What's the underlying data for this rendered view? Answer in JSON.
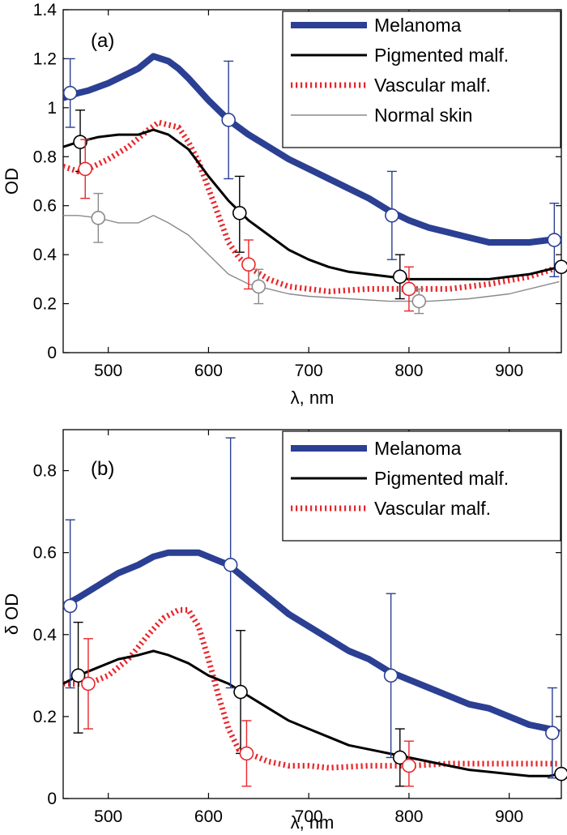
{
  "figure": {
    "panel_a_label": "(a)",
    "panel_b_label": "(b)"
  },
  "colors": {
    "melanoma": "#2b3f93",
    "pigmented": "#000000",
    "vascular": "#e8262a",
    "normal": "#8a8a8a"
  },
  "chart_data": [
    {
      "type": "line",
      "panel": "(a)",
      "xlabel": "λ, nm",
      "ylabel": "OD",
      "xlim": [
        455,
        952
      ],
      "ylim": [
        0,
        1.4
      ],
      "xticks": [
        500,
        600,
        700,
        800,
        900
      ],
      "yticks": [
        0,
        0.2,
        0.4,
        0.6,
        0.8,
        1,
        1.2,
        1.4
      ],
      "ytick_labels": [
        "0",
        "0.2",
        "0.4",
        "0.6",
        "0.8",
        "1",
        "1.2",
        "1.4"
      ],
      "grid": false,
      "legend_position": "top-right",
      "series": [
        {
          "name": "Melanoma",
          "color": "#2b3f93",
          "style": "thick",
          "x": [
            455,
            470,
            480,
            500,
            520,
            530,
            545,
            560,
            570,
            580,
            600,
            620,
            640,
            660,
            680,
            700,
            720,
            740,
            760,
            780,
            800,
            820,
            840,
            860,
            880,
            900,
            920,
            940,
            950
          ],
          "y": [
            1.04,
            1.06,
            1.07,
            1.1,
            1.14,
            1.16,
            1.21,
            1.19,
            1.16,
            1.12,
            1.03,
            0.95,
            0.89,
            0.84,
            0.79,
            0.75,
            0.71,
            0.67,
            0.63,
            0.58,
            0.54,
            0.51,
            0.49,
            0.47,
            0.45,
            0.45,
            0.45,
            0.46,
            0.46
          ],
          "markers": [
            {
              "x": 462,
              "y": 1.06,
              "lo": 0.92,
              "hi": 1.2
            },
            {
              "x": 620,
              "y": 0.95,
              "lo": 0.71,
              "hi": 1.19
            },
            {
              "x": 783,
              "y": 0.56,
              "lo": 0.38,
              "hi": 0.74
            },
            {
              "x": 945,
              "y": 0.46,
              "lo": 0.31,
              "hi": 0.61
            }
          ]
        },
        {
          "name": "Pigmented malf.",
          "color": "#000000",
          "style": "solid",
          "x": [
            455,
            470,
            490,
            510,
            530,
            545,
            560,
            580,
            600,
            620,
            640,
            660,
            680,
            700,
            720,
            740,
            760,
            780,
            800,
            820,
            840,
            860,
            880,
            900,
            920,
            940,
            950
          ],
          "y": [
            0.84,
            0.86,
            0.88,
            0.89,
            0.89,
            0.91,
            0.89,
            0.83,
            0.72,
            0.62,
            0.54,
            0.48,
            0.42,
            0.38,
            0.35,
            0.33,
            0.32,
            0.31,
            0.3,
            0.3,
            0.3,
            0.3,
            0.3,
            0.31,
            0.32,
            0.34,
            0.35
          ],
          "markers": [
            {
              "x": 472,
              "y": 0.86,
              "lo": 0.74,
              "hi": 0.99
            },
            {
              "x": 631,
              "y": 0.57,
              "lo": 0.41,
              "hi": 0.72
            },
            {
              "x": 791,
              "y": 0.31,
              "lo": 0.22,
              "hi": 0.4
            },
            {
              "x": 952,
              "y": 0.35,
              "lo": 0.35,
              "hi": 0.35
            }
          ]
        },
        {
          "name": "Vascular malf.",
          "color": "#e8262a",
          "style": "dotted",
          "x": [
            455,
            470,
            480,
            500,
            520,
            540,
            550,
            560,
            570,
            580,
            590,
            600,
            610,
            620,
            630,
            640,
            660,
            680,
            700,
            720,
            760,
            800,
            840,
            880,
            920,
            950
          ],
          "y": [
            0.76,
            0.74,
            0.75,
            0.79,
            0.84,
            0.91,
            0.94,
            0.93,
            0.92,
            0.86,
            0.78,
            0.67,
            0.56,
            0.45,
            0.39,
            0.35,
            0.3,
            0.27,
            0.26,
            0.25,
            0.26,
            0.26,
            0.26,
            0.28,
            0.31,
            0.35
          ],
          "markers": [
            {
              "x": 477,
              "y": 0.75,
              "lo": 0.63,
              "hi": 0.87
            },
            {
              "x": 640,
              "y": 0.36,
              "lo": 0.26,
              "hi": 0.46
            },
            {
              "x": 800,
              "y": 0.26,
              "lo": 0.17,
              "hi": 0.35
            }
          ]
        },
        {
          "name": "Normal skin",
          "color": "#8a8a8a",
          "style": "thin",
          "x": [
            455,
            470,
            490,
            510,
            530,
            545,
            560,
            580,
            600,
            620,
            640,
            660,
            680,
            700,
            740,
            780,
            820,
            860,
            900,
            930,
            950
          ],
          "y": [
            0.56,
            0.56,
            0.55,
            0.53,
            0.53,
            0.56,
            0.53,
            0.48,
            0.4,
            0.32,
            0.28,
            0.26,
            0.24,
            0.23,
            0.22,
            0.21,
            0.21,
            0.22,
            0.24,
            0.27,
            0.29
          ],
          "markers": [
            {
              "x": 490,
              "y": 0.55,
              "lo": 0.45,
              "hi": 0.65
            },
            {
              "x": 650,
              "y": 0.27,
              "lo": 0.2,
              "hi": 0.34
            },
            {
              "x": 810,
              "y": 0.21,
              "lo": 0.16,
              "hi": 0.26
            }
          ]
        }
      ]
    },
    {
      "type": "line",
      "panel": "(b)",
      "xlabel": "λ, nm",
      "ylabel": "δ OD",
      "xlim": [
        455,
        952
      ],
      "ylim": [
        0,
        0.9
      ],
      "xticks": [
        500,
        600,
        700,
        800,
        900
      ],
      "yticks": [
        0,
        0.2,
        0.4,
        0.6,
        0.8
      ],
      "ytick_labels": [
        "0",
        "0.2",
        "0.4",
        "0.6",
        "0.8"
      ],
      "grid": false,
      "legend_position": "top-right",
      "series": [
        {
          "name": "Melanoma",
          "color": "#2b3f93",
          "style": "thick",
          "x": [
            455,
            470,
            490,
            510,
            530,
            545,
            560,
            580,
            590,
            600,
            620,
            640,
            660,
            680,
            700,
            720,
            740,
            760,
            780,
            800,
            820,
            840,
            860,
            880,
            900,
            920,
            940,
            950
          ],
          "y": [
            0.47,
            0.49,
            0.52,
            0.55,
            0.57,
            0.59,
            0.6,
            0.6,
            0.6,
            0.59,
            0.57,
            0.53,
            0.49,
            0.45,
            0.42,
            0.39,
            0.36,
            0.34,
            0.31,
            0.29,
            0.27,
            0.25,
            0.23,
            0.22,
            0.2,
            0.18,
            0.17,
            0.16
          ],
          "markers": [
            {
              "x": 462,
              "y": 0.47,
              "lo": 0.27,
              "hi": 0.68
            },
            {
              "x": 622,
              "y": 0.57,
              "lo": 0.27,
              "hi": 0.88
            },
            {
              "x": 782,
              "y": 0.3,
              "lo": 0.1,
              "hi": 0.5
            },
            {
              "x": 943,
              "y": 0.16,
              "lo": 0.05,
              "hi": 0.27
            }
          ]
        },
        {
          "name": "Pigmented malf.",
          "color": "#000000",
          "style": "solid",
          "x": [
            455,
            470,
            490,
            510,
            530,
            545,
            560,
            580,
            600,
            620,
            640,
            660,
            680,
            700,
            720,
            740,
            760,
            780,
            800,
            820,
            840,
            860,
            880,
            900,
            920,
            940,
            950
          ],
          "y": [
            0.28,
            0.3,
            0.32,
            0.34,
            0.35,
            0.36,
            0.35,
            0.33,
            0.3,
            0.28,
            0.25,
            0.22,
            0.19,
            0.17,
            0.15,
            0.13,
            0.12,
            0.11,
            0.1,
            0.09,
            0.08,
            0.07,
            0.065,
            0.06,
            0.055,
            0.055,
            0.06
          ],
          "markers": [
            {
              "x": 470,
              "y": 0.3,
              "lo": 0.16,
              "hi": 0.43
            },
            {
              "x": 632,
              "y": 0.26,
              "lo": 0.11,
              "hi": 0.41
            },
            {
              "x": 791,
              "y": 0.1,
              "lo": 0.03,
              "hi": 0.17
            },
            {
              "x": 952,
              "y": 0.06,
              "lo": 0.06,
              "hi": 0.06
            }
          ]
        },
        {
          "name": "Vascular malf.",
          "color": "#e8262a",
          "style": "dotted",
          "x": [
            455,
            470,
            480,
            500,
            520,
            540,
            555,
            570,
            580,
            590,
            600,
            610,
            620,
            630,
            640,
            660,
            680,
            700,
            720,
            760,
            800,
            840,
            880,
            920,
            950
          ],
          "y": [
            0.28,
            0.28,
            0.28,
            0.3,
            0.34,
            0.4,
            0.44,
            0.46,
            0.46,
            0.42,
            0.34,
            0.25,
            0.17,
            0.12,
            0.11,
            0.09,
            0.08,
            0.08,
            0.075,
            0.08,
            0.08,
            0.085,
            0.085,
            0.085,
            0.085
          ],
          "markers": [
            {
              "x": 480,
              "y": 0.28,
              "lo": 0.17,
              "hi": 0.39
            },
            {
              "x": 638,
              "y": 0.11,
              "lo": 0.03,
              "hi": 0.19
            },
            {
              "x": 800,
              "y": 0.08,
              "lo": 0.03,
              "hi": 0.14
            }
          ]
        }
      ]
    }
  ]
}
